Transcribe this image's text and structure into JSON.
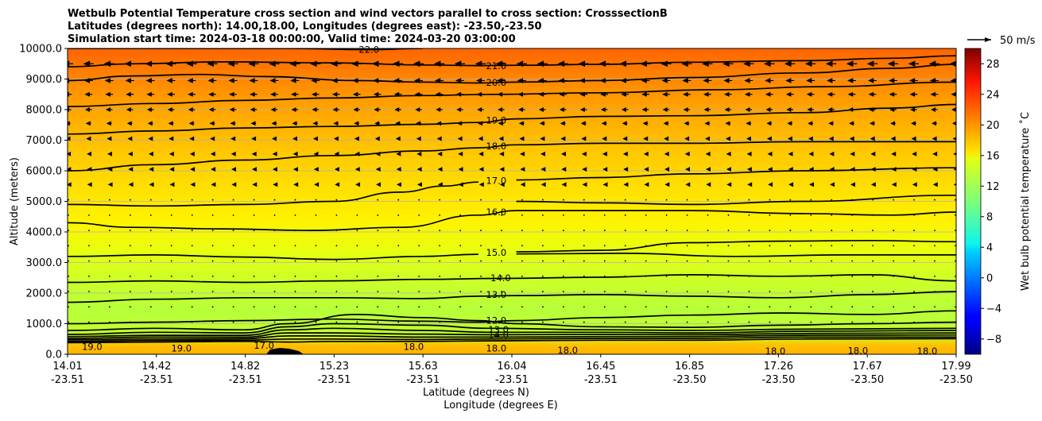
{
  "chart_data": {
    "type": "heatmap",
    "title_lines": [
      "Wetbulb Potential Temperature cross section and wind vectors parallel to cross section: CrosssectionB",
      "Latitudes (degrees north): 14.00,18.00, Longitudes (degrees east): -23.50,-23.50",
      "Simulation start time: 2024-03-18 00:00:00, Valid time: 2024-03-20 03:00:00"
    ],
    "xlabel_lat": "Latitude (degrees N)",
    "xlabel_lon": "Longitude (degrees E)",
    "ylabel": "Altitude (meters)",
    "colorbar_label": "Wet bulb potential temperature $^\\circ$C",
    "colorbar_label_text": "Wet bulb potential temperature ˚C",
    "quiver_key_label": "50 m/s",
    "xlim": [
      14.01,
      17.99
    ],
    "ylim": [
      0,
      10000
    ],
    "colorbar_range": [
      -10,
      30
    ],
    "colormap": "jet",
    "x_ticks": [
      {
        "lat": "14.01",
        "lon": "-23.51"
      },
      {
        "lat": "14.42",
        "lon": "-23.51"
      },
      {
        "lat": "14.82",
        "lon": "-23.51"
      },
      {
        "lat": "15.23",
        "lon": "-23.51"
      },
      {
        "lat": "15.63",
        "lon": "-23.51"
      },
      {
        "lat": "16.04",
        "lon": "-23.51"
      },
      {
        "lat": "16.45",
        "lon": "-23.51"
      },
      {
        "lat": "16.85",
        "lon": "-23.50"
      },
      {
        "lat": "17.26",
        "lon": "-23.50"
      },
      {
        "lat": "17.67",
        "lon": "-23.50"
      },
      {
        "lat": "17.99",
        "lon": "-23.50"
      }
    ],
    "y_ticks": [
      "0.0",
      "1000.0",
      "2000.0",
      "3000.0",
      "4000.0",
      "5000.0",
      "6000.0",
      "7000.0",
      "8000.0",
      "9000.0",
      "10000.0"
    ],
    "y_tick_values": [
      0,
      1000,
      2000,
      3000,
      4000,
      5000,
      6000,
      7000,
      8000,
      9000,
      10000
    ],
    "colorbar_ticks": [
      "−8",
      "−4",
      "0",
      "4",
      "8",
      "12",
      "16",
      "20",
      "24",
      "28"
    ],
    "colorbar_tick_values": [
      -8,
      -4,
      0,
      4,
      8,
      12,
      16,
      20,
      24,
      28
    ],
    "contour_labels": [
      {
        "text": "22.0",
        "x": 15.36,
        "y": 9960
      },
      {
        "text": "21.0",
        "x": 15.93,
        "y": 9430
      },
      {
        "text": "20.0",
        "x": 15.93,
        "y": 8880
      },
      {
        "text": "19.0",
        "x": 15.93,
        "y": 7650
      },
      {
        "text": "18.0",
        "x": 15.93,
        "y": 6800
      },
      {
        "text": "17.0",
        "x": 15.93,
        "y": 5670
      },
      {
        "text": "16.0",
        "x": 15.93,
        "y": 4650
      },
      {
        "text": "15.0",
        "x": 15.93,
        "y": 3320
      },
      {
        "text": "14.0",
        "x": 15.95,
        "y": 2500
      },
      {
        "text": "13.0",
        "x": 15.93,
        "y": 1950
      },
      {
        "text": "12.0",
        "x": 15.93,
        "y": 1100
      },
      {
        "text": "13.0",
        "x": 15.94,
        "y": 800
      },
      {
        "text": "14.0",
        "x": 15.94,
        "y": 640
      },
      {
        "text": "19.0",
        "x": 14.12,
        "y": 250
      },
      {
        "text": "19.0",
        "x": 14.52,
        "y": 200
      },
      {
        "text": "17.0",
        "x": 14.89,
        "y": 280
      },
      {
        "text": "18.0",
        "x": 15.56,
        "y": 250
      },
      {
        "text": "18.0",
        "x": 15.93,
        "y": 200
      },
      {
        "text": "18.0",
        "x": 16.25,
        "y": 130
      },
      {
        "text": "18.0",
        "x": 17.18,
        "y": 100
      },
      {
        "text": "18.0",
        "x": 17.55,
        "y": 120
      },
      {
        "text": "18.0",
        "x": 17.86,
        "y": 100
      }
    ],
    "contours": [
      {
        "level": 22.0,
        "points": [
          [
            14.01,
            10000
          ],
          [
            15.0,
            10000
          ],
          [
            15.36,
            9960
          ],
          [
            15.6,
            10000
          ]
        ]
      },
      {
        "level": 21.0,
        "points": [
          [
            14.01,
            9400
          ],
          [
            14.3,
            9500
          ],
          [
            14.7,
            9560
          ],
          [
            15.2,
            9530
          ],
          [
            15.6,
            9460
          ],
          [
            15.85,
            9440
          ],
          [
            16.02,
            9450
          ],
          [
            16.4,
            9480
          ],
          [
            16.8,
            9550
          ],
          [
            17.3,
            9600
          ],
          [
            17.7,
            9680
          ],
          [
            17.99,
            9760
          ]
        ]
      },
      {
        "level": 20.0,
        "points": [
          [
            14.01,
            8950
          ],
          [
            14.3,
            9100
          ],
          [
            14.6,
            9150
          ],
          [
            14.9,
            9080
          ],
          [
            15.3,
            8950
          ],
          [
            15.6,
            8900
          ],
          [
            15.85,
            8870
          ],
          [
            16.02,
            8900
          ],
          [
            16.4,
            8950
          ],
          [
            16.8,
            9050
          ],
          [
            17.3,
            9200
          ],
          [
            17.7,
            9350
          ],
          [
            17.99,
            9480
          ]
        ]
      },
      {
        "level": 19.5,
        "points": [
          [
            14.01,
            8100
          ],
          [
            14.4,
            8200
          ],
          [
            14.8,
            8300
          ],
          [
            15.2,
            8380
          ],
          [
            15.6,
            8460
          ],
          [
            15.9,
            8500
          ],
          [
            16.4,
            8550
          ],
          [
            16.9,
            8650
          ],
          [
            17.4,
            8750
          ],
          [
            17.99,
            8900
          ]
        ]
      },
      {
        "level": 19.0,
        "points": [
          [
            14.01,
            7200
          ],
          [
            14.4,
            7300
          ],
          [
            14.8,
            7400
          ],
          [
            15.2,
            7450
          ],
          [
            15.6,
            7520
          ],
          [
            15.85,
            7580
          ],
          [
            16.02,
            7700
          ],
          [
            16.4,
            7780
          ],
          [
            16.8,
            7800
          ],
          [
            17.3,
            7900
          ],
          [
            17.7,
            8050
          ],
          [
            17.99,
            8170
          ]
        ]
      },
      {
        "level": 18.0,
        "points": [
          [
            14.01,
            6000
          ],
          [
            14.4,
            6200
          ],
          [
            14.8,
            6350
          ],
          [
            15.2,
            6500
          ],
          [
            15.6,
            6650
          ],
          [
            15.85,
            6750
          ],
          [
            16.02,
            6850
          ],
          [
            16.4,
            6900
          ],
          [
            16.8,
            6900
          ],
          [
            17.3,
            6950
          ],
          [
            17.99,
            6950
          ]
        ]
      },
      {
        "level": 17.5,
        "points": [
          [
            16.02,
            5700
          ],
          [
            16.4,
            5780
          ],
          [
            16.8,
            5900
          ],
          [
            17.3,
            6000
          ],
          [
            17.99,
            6100
          ]
        ]
      },
      {
        "level": 17.0,
        "points": [
          [
            14.01,
            4900
          ],
          [
            14.4,
            4850
          ],
          [
            14.8,
            4900
          ],
          [
            15.2,
            5000
          ],
          [
            15.5,
            5300
          ],
          [
            15.7,
            5500
          ],
          [
            15.85,
            5630
          ]
        ]
      },
      {
        "level": 16.5,
        "points": [
          [
            16.02,
            5000
          ],
          [
            16.4,
            4950
          ],
          [
            16.8,
            4900
          ],
          [
            17.3,
            5000
          ],
          [
            17.99,
            5200
          ]
        ]
      },
      {
        "level": 16.0,
        "points": [
          [
            14.01,
            4300
          ],
          [
            14.3,
            4150
          ],
          [
            14.7,
            4100
          ],
          [
            15.1,
            4050
          ],
          [
            15.5,
            4150
          ],
          [
            15.85,
            4550
          ],
          [
            16.02,
            4700
          ],
          [
            16.4,
            4700
          ],
          [
            16.8,
            4700
          ],
          [
            17.3,
            4600
          ],
          [
            17.7,
            4550
          ],
          [
            17.99,
            4650
          ]
        ]
      },
      {
        "level": 15.5,
        "points": [
          [
            16.02,
            3350
          ],
          [
            16.4,
            3400
          ],
          [
            16.8,
            3650
          ],
          [
            17.2,
            3700
          ],
          [
            17.6,
            3720
          ],
          [
            17.99,
            3680
          ]
        ]
      },
      {
        "level": 15.0,
        "points": [
          [
            14.01,
            3200
          ],
          [
            14.4,
            3250
          ],
          [
            14.8,
            3180
          ],
          [
            15.2,
            3100
          ],
          [
            15.6,
            3200
          ],
          [
            15.85,
            3270
          ]
        ]
      },
      {
        "level": 14.5,
        "points": [
          [
            16.02,
            3280
          ],
          [
            16.5,
            3300
          ],
          [
            17.0,
            3200
          ],
          [
            17.5,
            3250
          ],
          [
            17.99,
            3250
          ]
        ]
      },
      {
        "level": 14.0,
        "points": [
          [
            14.01,
            2350
          ],
          [
            14.4,
            2400
          ],
          [
            14.8,
            2350
          ],
          [
            15.2,
            2400
          ],
          [
            15.6,
            2450
          ],
          [
            15.95,
            2480
          ],
          [
            16.4,
            2520
          ],
          [
            16.8,
            2600
          ],
          [
            17.2,
            2550
          ],
          [
            17.6,
            2600
          ],
          [
            17.99,
            2400
          ]
        ]
      },
      {
        "level": 13.0,
        "points": [
          [
            14.01,
            1700
          ],
          [
            14.4,
            1800
          ],
          [
            14.8,
            1850
          ],
          [
            15.2,
            1850
          ],
          [
            15.6,
            1820
          ],
          [
            15.85,
            1900
          ],
          [
            16.02,
            1920
          ],
          [
            16.4,
            1950
          ],
          [
            16.8,
            1900
          ],
          [
            17.2,
            1850
          ],
          [
            17.6,
            1950
          ],
          [
            17.99,
            2050
          ]
        ]
      },
      {
        "level": 12.0,
        "points": [
          [
            14.01,
            1000
          ],
          [
            14.4,
            1050
          ],
          [
            14.8,
            1100
          ],
          [
            15.2,
            1150
          ],
          [
            15.6,
            1080
          ],
          [
            15.85,
            1050
          ],
          [
            16.02,
            1100
          ],
          [
            16.4,
            1200
          ],
          [
            16.8,
            1280
          ],
          [
            17.2,
            1350
          ],
          [
            17.6,
            1300
          ],
          [
            17.99,
            1420
          ]
        ]
      },
      {
        "level": 11.0,
        "points": [
          [
            14.01,
            780
          ],
          [
            14.4,
            850
          ],
          [
            14.8,
            800
          ],
          [
            15.0,
            1000
          ],
          [
            15.3,
            1300
          ],
          [
            15.6,
            1200
          ],
          [
            15.85,
            1100
          ],
          [
            16.02,
            1000
          ],
          [
            16.4,
            900
          ],
          [
            16.8,
            880
          ],
          [
            17.2,
            950
          ],
          [
            17.6,
            1000
          ],
          [
            17.99,
            1050
          ]
        ]
      },
      {
        "level": 12.5,
        "points": [
          [
            14.01,
            650
          ],
          [
            14.4,
            720
          ],
          [
            14.8,
            700
          ],
          [
            15.0,
            900
          ],
          [
            15.2,
            1000
          ],
          [
            15.6,
            950
          ],
          [
            15.9,
            850
          ],
          [
            16.4,
            800
          ],
          [
            16.8,
            780
          ],
          [
            17.3,
            820
          ],
          [
            17.99,
            850
          ]
        ]
      },
      {
        "level": 13.5,
        "points": [
          [
            14.01,
            580
          ],
          [
            14.4,
            620
          ],
          [
            14.8,
            620
          ],
          [
            15.0,
            800
          ],
          [
            15.2,
            850
          ],
          [
            15.6,
            780
          ],
          [
            15.9,
            720
          ],
          [
            16.4,
            720
          ],
          [
            16.8,
            700
          ],
          [
            17.3,
            750
          ],
          [
            17.99,
            780
          ]
        ]
      },
      {
        "level": 14.5,
        "points": [
          [
            14.01,
            520
          ],
          [
            14.4,
            560
          ],
          [
            14.8,
            560
          ],
          [
            15.0,
            700
          ],
          [
            15.2,
            700
          ],
          [
            15.6,
            660
          ],
          [
            15.9,
            640
          ],
          [
            16.4,
            650
          ],
          [
            16.8,
            640
          ],
          [
            17.3,
            680
          ],
          [
            17.99,
            700
          ]
        ]
      },
      {
        "level": 15.5,
        "points": [
          [
            14.01,
            470
          ],
          [
            14.4,
            500
          ],
          [
            14.8,
            510
          ],
          [
            15.0,
            600
          ],
          [
            15.2,
            600
          ],
          [
            15.6,
            560
          ],
          [
            15.9,
            560
          ],
          [
            16.4,
            580
          ],
          [
            16.8,
            580
          ],
          [
            17.3,
            620
          ],
          [
            17.99,
            630
          ]
        ]
      },
      {
        "level": 16.5,
        "points": [
          [
            14.01,
            420
          ],
          [
            14.4,
            450
          ],
          [
            14.8,
            460
          ],
          [
            15.0,
            500
          ],
          [
            15.2,
            500
          ],
          [
            15.6,
            480
          ],
          [
            15.9,
            500
          ],
          [
            16.4,
            520
          ],
          [
            16.8,
            520
          ],
          [
            17.3,
            560
          ],
          [
            17.99,
            560
          ]
        ]
      },
      {
        "level": 17.5,
        "points": [
          [
            14.01,
            380
          ],
          [
            14.4,
            400
          ],
          [
            14.8,
            420
          ],
          [
            15.0,
            400
          ],
          [
            15.2,
            420
          ],
          [
            15.6,
            420
          ],
          [
            15.9,
            440
          ],
          [
            16.4,
            460
          ],
          [
            16.8,
            460
          ],
          [
            17.3,
            500
          ],
          [
            17.99,
            510
          ]
        ]
      }
    ],
    "wind_vectors": [
      {
        "y": 9500,
        "u": -20
      },
      {
        "y": 8950,
        "u": -16
      },
      {
        "y": 8500,
        "u": -14
      },
      {
        "y": 8000,
        "u": -12
      },
      {
        "y": 7550,
        "u": -9
      },
      {
        "y": 7050,
        "u": -7
      },
      {
        "y": 6550,
        "u": -5
      },
      {
        "y": 6050,
        "u": -4
      },
      {
        "y": 5550,
        "u": -3
      },
      {
        "y": 5050,
        "u": -2
      },
      {
        "y": 4550,
        "u": -1.5
      },
      {
        "y": 4050,
        "u": -1
      },
      {
        "y": 3550,
        "u": -0.5
      },
      {
        "y": 3050,
        "u": -0.5
      },
      {
        "y": 2550,
        "u": -0.5
      },
      {
        "y": 2050,
        "u": 0.3
      },
      {
        "y": 1550,
        "u": 0.3
      },
      {
        "y": 1050,
        "u": 0.5
      }
    ],
    "quiver_reference_speed": 50
  }
}
